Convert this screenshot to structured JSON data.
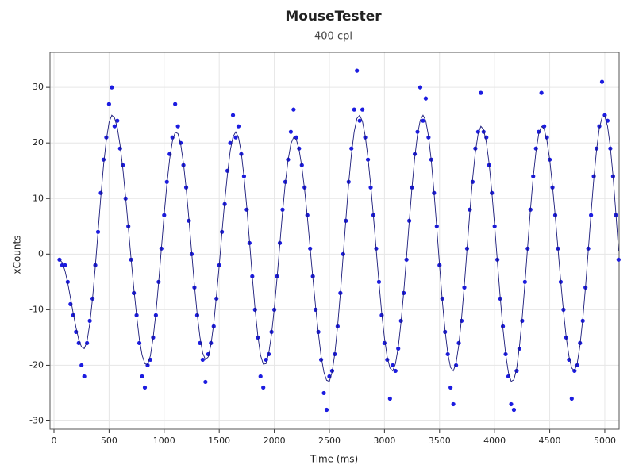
{
  "chart_data": {
    "type": "scatter",
    "title": "MouseTester",
    "subtitle": "400 cpi",
    "xlabel": "Time (ms)",
    "ylabel": "xCounts",
    "xlim": [
      -36,
      5130
    ],
    "ylim": [
      -31.5,
      36.3
    ],
    "xticks": [
      0,
      500,
      1000,
      1500,
      2000,
      2500,
      3000,
      3500,
      4000,
      4500,
      5000
    ],
    "yticks": [
      -30,
      -20,
      -10,
      0,
      10,
      20,
      30
    ],
    "grid": true,
    "x": [
      50,
      75,
      100,
      125,
      150,
      175,
      200,
      225,
      250,
      275,
      300,
      325,
      350,
      375,
      400,
      425,
      450,
      475,
      500,
      525,
      550,
      575,
      600,
      625,
      650,
      675,
      700,
      725,
      750,
      775,
      800,
      825,
      850,
      875,
      900,
      925,
      950,
      975,
      1000,
      1025,
      1050,
      1075,
      1100,
      1125,
      1150,
      1175,
      1200,
      1225,
      1250,
      1275,
      1300,
      1325,
      1350,
      1375,
      1400,
      1425,
      1450,
      1475,
      1500,
      1525,
      1550,
      1575,
      1600,
      1625,
      1650,
      1675,
      1700,
      1725,
      1750,
      1775,
      1800,
      1825,
      1850,
      1875,
      1900,
      1925,
      1950,
      1975,
      2000,
      2025,
      2050,
      2075,
      2100,
      2125,
      2150,
      2175,
      2200,
      2225,
      2250,
      2275,
      2300,
      2325,
      2350,
      2375,
      2400,
      2425,
      2450,
      2475,
      2500,
      2525,
      2550,
      2575,
      2600,
      2625,
      2650,
      2675,
      2700,
      2725,
      2750,
      2775,
      2800,
      2825,
      2850,
      2875,
      2900,
      2925,
      2950,
      2975,
      3000,
      3025,
      3050,
      3075,
      3100,
      3125,
      3150,
      3175,
      3200,
      3225,
      3250,
      3275,
      3300,
      3325,
      3350,
      3375,
      3400,
      3425,
      3450,
      3475,
      3500,
      3525,
      3550,
      3575,
      3600,
      3625,
      3650,
      3675,
      3700,
      3725,
      3750,
      3775,
      3800,
      3825,
      3850,
      3875,
      3900,
      3925,
      3950,
      3975,
      4000,
      4025,
      4050,
      4075,
      4100,
      4125,
      4150,
      4175,
      4200,
      4225,
      4250,
      4275,
      4300,
      4325,
      4350,
      4375,
      4400,
      4425,
      4450,
      4475,
      4500,
      4525,
      4550,
      4575,
      4600,
      4625,
      4650,
      4675,
      4700,
      4725,
      4750,
      4775,
      4800,
      4825,
      4850,
      4875,
      4900,
      4925,
      4950,
      4975,
      5000,
      5025,
      5050,
      5075,
      5100,
      5125
    ],
    "series": [
      {
        "mode": "markers",
        "color": "#1c1ce0",
        "values": [
          -1,
          -2,
          -2,
          -5,
          -9,
          -11,
          -14,
          -16,
          -20,
          -22,
          -16,
          -12,
          -8,
          -2,
          4,
          11,
          17,
          21,
          27,
          30,
          23,
          24,
          19,
          16,
          10,
          5,
          -1,
          -7,
          -11,
          -16,
          -22,
          -24,
          -20,
          -19,
          -15,
          -11,
          -5,
          1,
          7,
          13,
          18,
          21,
          27,
          23,
          20,
          16,
          12,
          6,
          0,
          -6,
          -11,
          -16,
          -19,
          -23,
          -18,
          -16,
          -13,
          -8,
          -2,
          4,
          9,
          15,
          20,
          25,
          21,
          23,
          18,
          14,
          8,
          2,
          -4,
          -10,
          -15,
          -22,
          -24,
          -19,
          -18,
          -14,
          -10,
          -4,
          2,
          8,
          13,
          17,
          22,
          26,
          21,
          19,
          16,
          12,
          7,
          1,
          -4,
          -10,
          -14,
          -19,
          -25,
          -28,
          -22,
          -21,
          -18,
          -13,
          -7,
          0,
          6,
          13,
          19,
          26,
          33,
          24,
          26,
          21,
          17,
          12,
          7,
          1,
          -5,
          -11,
          -16,
          -19,
          -26,
          -20,
          -21,
          -17,
          -12,
          -7,
          -1,
          6,
          12,
          18,
          22,
          30,
          24,
          28,
          21,
          17,
          11,
          5,
          -2,
          -8,
          -14,
          -18,
          -24,
          -27,
          -20,
          -16,
          -12,
          -6,
          1,
          8,
          13,
          19,
          22,
          29,
          22,
          21,
          16,
          11,
          5,
          -1,
          -8,
          -13,
          -18,
          -22,
          -27,
          -28,
          -21,
          -17,
          -12,
          -5,
          1,
          8,
          14,
          19,
          22,
          29,
          23,
          21,
          17,
          12,
          7,
          1,
          -5,
          -10,
          -15,
          -19,
          -26,
          -21,
          -20,
          -16,
          -12,
          -6,
          1,
          7,
          14,
          19,
          23,
          31,
          25,
          24,
          19,
          14,
          7,
          -1
        ]
      },
      {
        "mode": "line",
        "color": "#1a1a7a",
        "values": [
          -1.0,
          -1.5,
          -3.0,
          -5.2,
          -7.9,
          -10.7,
          -13.2,
          -15.4,
          -16.7,
          -17.0,
          -15.7,
          -12.5,
          -8.0,
          -2.3,
          4.0,
          10.3,
          16.0,
          20.5,
          23.7,
          25.0,
          24.5,
          22.7,
          19.6,
          15.4,
          10.3,
          4.8,
          -0.9,
          -6.2,
          -11.0,
          -15.3,
          -18.2,
          -19.7,
          -19.9,
          -18.3,
          -15.1,
          -10.6,
          -5.1,
          1.0,
          7.1,
          12.6,
          17.1,
          20.3,
          21.9,
          21.7,
          19.8,
          16.4,
          11.8,
          6.3,
          0.3,
          -5.6,
          -10.8,
          -14.9,
          -17.8,
          -19.0,
          -18.5,
          -16.3,
          -12.5,
          -7.5,
          -2.1,
          3.9,
          9.5,
          14.4,
          18.6,
          21.1,
          22.0,
          21.0,
          18.3,
          13.9,
          8.5,
          2.3,
          -4.0,
          -9.8,
          -14.6,
          -18.2,
          -19.8,
          -19.7,
          -17.8,
          -14.4,
          -9.8,
          -4.3,
          1.7,
          7.6,
          12.8,
          16.9,
          19.8,
          21.0,
          20.6,
          18.8,
          15.7,
          11.6,
          6.7,
          1.2,
          -4.3,
          -9.5,
          -14.2,
          -18.4,
          -21.2,
          -22.7,
          -22.9,
          -21.2,
          -17.8,
          -12.9,
          -7.0,
          -0.3,
          6.3,
          12.7,
          18.0,
          22.0,
          24.4,
          25.0,
          23.9,
          21.3,
          17.4,
          12.4,
          6.8,
          0.8,
          -5.1,
          -10.6,
          -15.1,
          -18.5,
          -20.5,
          -21.0,
          -19.7,
          -16.8,
          -12.3,
          -6.8,
          -0.6,
          5.9,
          12.0,
          17.4,
          21.5,
          24.1,
          25.0,
          24.0,
          21.2,
          16.8,
          11.1,
          4.7,
          -2.0,
          -8.4,
          -13.7,
          -17.9,
          -20.4,
          -21.0,
          -19.6,
          -16.3,
          -11.5,
          -5.6,
          1.0,
          7.6,
          13.5,
          18.3,
          21.6,
          23.0,
          22.4,
          20.1,
          16.3,
          11.1,
          5.1,
          -1.3,
          -7.6,
          -13.3,
          -18.0,
          -21.3,
          -22.9,
          -22.6,
          -20.6,
          -16.7,
          -11.5,
          -5.3,
          1.4,
          8.0,
          13.8,
          18.4,
          21.6,
          23.0,
          22.5,
          20.4,
          17.0,
          12.3,
          6.9,
          1.0,
          -4.9,
          -10.3,
          -15.0,
          -18.4,
          -20.5,
          -21.0,
          -19.6,
          -16.4,
          -11.7,
          -5.9,
          0.6,
          7.3,
          13.5,
          18.7,
          22.6,
          24.6,
          24.8,
          23.0,
          19.3,
          14.0,
          7.5,
          0.6
        ]
      }
    ]
  }
}
